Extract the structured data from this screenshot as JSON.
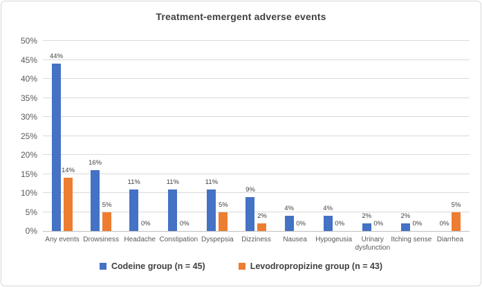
{
  "chart_data": {
    "type": "bar",
    "title": "Treatment-emergent adverse events",
    "categories": [
      "Any events",
      "Drowsiness",
      "Headache",
      "Constipation",
      "Dyspepsia",
      "Dizziness",
      "Nausea",
      "Hypogeusia",
      "Urinary dysfunction",
      "Itching sense",
      "Diarrhea"
    ],
    "series": [
      {
        "name": "Codeine group (n = 45)",
        "color": "#4472C4",
        "values": [
          44,
          16,
          11,
          11,
          11,
          9,
          4,
          4,
          2,
          2,
          0
        ]
      },
      {
        "name": "Levodropropizine group (n = 43)",
        "color": "#ED7D31",
        "values": [
          14,
          5,
          0,
          0,
          5,
          2,
          0,
          0,
          0,
          0,
          5
        ]
      }
    ],
    "xlabel": "",
    "ylabel": "",
    "ylim": [
      0,
      50
    ],
    "ytick_step": 5,
    "ytick_labels": [
      "0%",
      "5%",
      "10%",
      "15%",
      "20%",
      "25%",
      "30%",
      "35%",
      "40%",
      "45%",
      "50%"
    ],
    "data_label_suffix": "%",
    "grid": true,
    "legend_position": "bottom"
  },
  "colors": {
    "series_codeine": "#4472C4",
    "series_levodropropizine": "#ED7D31",
    "gridline": "#D9D9D9",
    "axis_line": "#BFBFBF",
    "axis_text": "#595959",
    "title_text": "#404040",
    "data_label_text": "#404040",
    "frame_border": "#D6D6D6",
    "background": "#FFFFFF"
  }
}
